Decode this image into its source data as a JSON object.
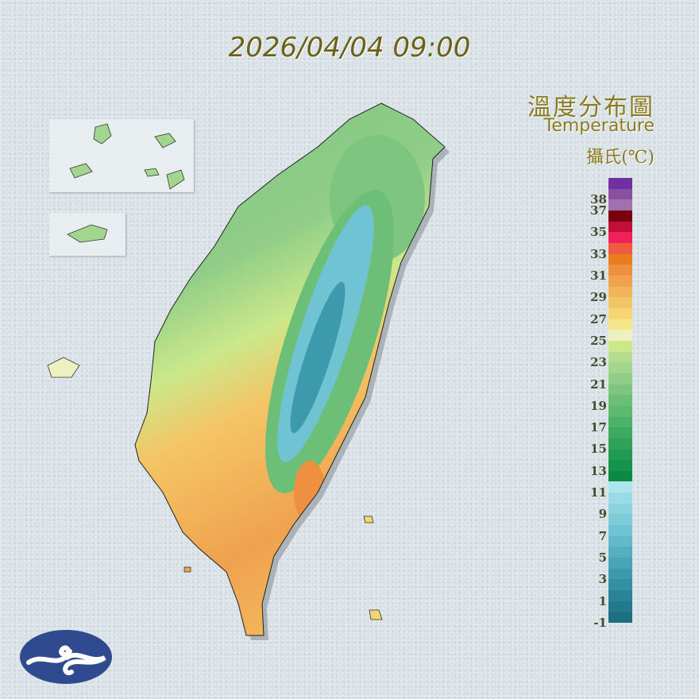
{
  "timestamp": "2026/04/04 09:00",
  "title": {
    "zh": "溫度分布圖",
    "en": "Temperature",
    "unit": "攝氏(℃)"
  },
  "legend": {
    "min": -1,
    "max": 39,
    "labels": [
      38,
      37,
      35,
      33,
      31,
      29,
      27,
      25,
      23,
      21,
      19,
      17,
      15,
      13,
      11,
      9,
      7,
      5,
      3,
      1,
      -1
    ],
    "colors": [
      "#1e6f80",
      "#23798c",
      "#2a8497",
      "#3390a2",
      "#3c9aac",
      "#48a5b6",
      "#55afc0",
      "#62b9c9",
      "#70c3d2",
      "#7ecbd9",
      "#8cd3e0",
      "#9bdbe6",
      "#ace5ee",
      "#0a8a45",
      "#15924c",
      "#229a52",
      "#30a259",
      "#3eaa60",
      "#4db168",
      "#5db870",
      "#6dbf78",
      "#7ec680",
      "#8fcd88",
      "#a2d58e",
      "#b6dd8f",
      "#cbe88a",
      "#eef0c0",
      "#f7e58a",
      "#f6d674",
      "#f4c565",
      "#f2b45a",
      "#f0a24e",
      "#ee9040",
      "#e87c1e",
      "#f05a3e",
      "#f0205a",
      "#c0103a",
      "#7a0010",
      "#a070b0",
      "#8a50a0",
      "#7030a0"
    ]
  },
  "colors": {
    "mountain": "#3a97a8",
    "north": "#7ec680",
    "south": "#f0b050",
    "logo": "#2f4a8e"
  },
  "icons": {
    "logo": "cwa-cloud-logo"
  }
}
